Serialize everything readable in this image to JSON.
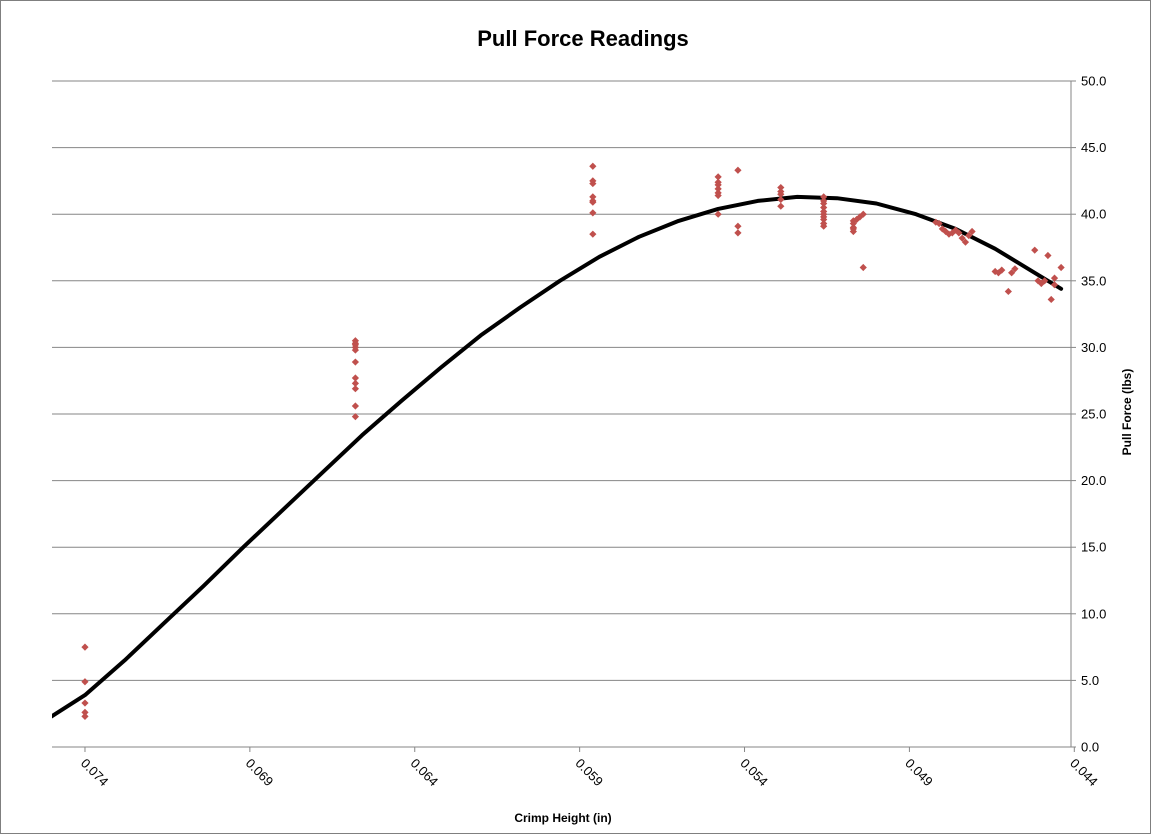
{
  "chart_data": {
    "type": "scatter",
    "title": "Pull Force Readings",
    "xlabel": "Crimp Height (in)",
    "ylabel": "Pull Force (lbs)",
    "x_reversed": true,
    "xlim": [
      0.075,
      0.0441
    ],
    "ylim": [
      0,
      50
    ],
    "x_ticks": [
      0.074,
      0.069,
      0.064,
      0.059,
      0.054,
      0.049,
      0.044
    ],
    "x_tick_labels": [
      "0.074",
      "0.069",
      "0.064",
      "0.059",
      "0.054",
      "0.049",
      "0.044"
    ],
    "y_ticks": [
      0,
      5,
      10,
      15,
      20,
      25,
      30,
      35,
      40,
      45,
      50
    ],
    "y_tick_labels": [
      "0.0",
      "5.0",
      "10.0",
      "15.0",
      "20.0",
      "25.0",
      "30.0",
      "35.0",
      "40.0",
      "45.0",
      "50.0"
    ],
    "grid": "horizontal",
    "y_axis_side": "right",
    "colors": {
      "points": "#c0504d",
      "trend": "#000000",
      "grid": "#868686"
    },
    "series": [
      {
        "type": "scatter",
        "x": [
          0.074,
          0.074,
          0.074,
          0.074,
          0.074,
          0.0658,
          0.0658,
          0.0658,
          0.0658,
          0.0658,
          0.0658,
          0.0658,
          0.0658,
          0.0658,
          0.0658,
          0.0658,
          0.0586,
          0.0586,
          0.0586,
          0.0586,
          0.0586,
          0.0586,
          0.0586,
          0.0586,
          0.0548,
          0.0548,
          0.0548,
          0.0548,
          0.0548,
          0.0548,
          0.0548,
          0.0542,
          0.0542,
          0.0542,
          0.0529,
          0.0529,
          0.0529,
          0.0529,
          0.0529,
          0.0516,
          0.0516,
          0.0516,
          0.0516,
          0.0516,
          0.0516,
          0.0516,
          0.0516,
          0.0516,
          0.0516,
          0.0507,
          0.0507,
          0.0507,
          0.0507,
          0.0507,
          0.0506,
          0.0505,
          0.0504,
          0.0504,
          0.0482,
          0.0481,
          0.048,
          0.0479,
          0.0478,
          0.0477,
          0.0476,
          0.0475,
          0.0474,
          0.0473,
          0.0472,
          0.0471,
          0.0464,
          0.0463,
          0.0462,
          0.046,
          0.0459,
          0.0458,
          0.0452,
          0.0451,
          0.045,
          0.0449,
          0.0448,
          0.0447,
          0.0446,
          0.0446,
          0.0444
        ],
        "y": [
          7.5,
          4.9,
          3.3,
          2.6,
          2.3,
          30.5,
          30.3,
          30.0,
          29.8,
          28.9,
          27.7,
          27.3,
          26.9,
          25.6,
          24.8,
          30.2,
          43.6,
          42.5,
          42.3,
          41.3,
          41.0,
          40.9,
          40.1,
          38.5,
          42.8,
          42.4,
          42.2,
          41.9,
          41.6,
          41.4,
          40.0,
          39.1,
          43.3,
          38.6,
          42.0,
          41.7,
          41.5,
          41.1,
          40.6,
          41.3,
          41.0,
          40.8,
          40.5,
          40.2,
          40.0,
          39.8,
          39.6,
          39.3,
          39.1,
          39.0,
          38.9,
          38.7,
          39.3,
          39.5,
          39.6,
          39.8,
          40.0,
          36.0,
          39.4,
          39.3,
          38.9,
          38.7,
          38.5,
          38.6,
          38.8,
          38.6,
          38.2,
          37.9,
          38.4,
          38.7,
          35.7,
          35.6,
          35.8,
          34.2,
          35.6,
          35.9,
          37.3,
          35.0,
          34.8,
          35.0,
          36.9,
          33.6,
          35.2,
          34.7,
          36.0
        ]
      },
      {
        "type": "line",
        "x": [
          0.0752,
          0.074,
          0.0728,
          0.0716,
          0.0704,
          0.0692,
          0.068,
          0.0668,
          0.0656,
          0.0644,
          0.0632,
          0.062,
          0.0608,
          0.0596,
          0.0584,
          0.0572,
          0.056,
          0.0548,
          0.0536,
          0.0524,
          0.0512,
          0.05,
          0.0488,
          0.0476,
          0.0464,
          0.0452,
          0.0444
        ],
        "y": [
          2.0,
          3.9,
          6.5,
          9.3,
          12.1,
          15.0,
          17.8,
          20.6,
          23.4,
          26.0,
          28.5,
          30.9,
          33.0,
          35.0,
          36.8,
          38.3,
          39.5,
          40.4,
          41.0,
          41.3,
          41.2,
          40.8,
          40.0,
          38.9,
          37.4,
          35.6,
          34.4
        ]
      }
    ]
  }
}
